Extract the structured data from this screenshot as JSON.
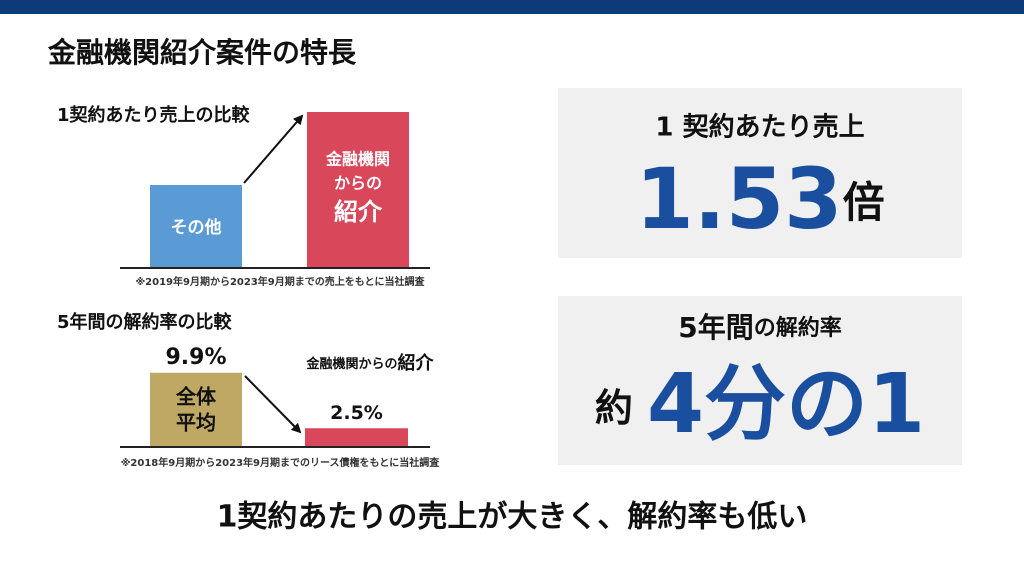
{
  "header": {
    "title": "金融機関紹介案件の特長"
  },
  "sales_chart": {
    "title": "1契約あたり売上の比較",
    "bars": [
      {
        "label": "その他",
        "color": "#5b9bd5"
      },
      {
        "label_lines": [
          "金融機関",
          "からの",
          "紹介"
        ],
        "color": "#d9475a"
      }
    ],
    "note": "※2019年9月期から2023年9月期までの売上をもとに当社調査"
  },
  "churn_chart": {
    "type": "bar",
    "title": "5年間の解約率の比較",
    "ylim": [
      0,
      10
    ],
    "bars": [
      {
        "label_lines": [
          "全体",
          "平均"
        ],
        "value": 9.9,
        "value_label": "9.9%",
        "color": "#bfa864"
      },
      {
        "label_parts": [
          "金融機関からの",
          "紹介"
        ],
        "value": 2.5,
        "value_label": "2.5%",
        "color": "#d9475a"
      }
    ],
    "note": "※2018年9月期から2023年9月期までのリース債権をもとに当社調査"
  },
  "sales_panel": {
    "heading": "1 契約あたり売上",
    "value": "1.53",
    "unit": "倍"
  },
  "churn_panel": {
    "heading_parts": [
      "5年間",
      "の解約率"
    ],
    "prefix": "約",
    "value": "4分の1"
  },
  "footer": {
    "text": "1契約あたりの売上が大きく、解約率も低い"
  }
}
